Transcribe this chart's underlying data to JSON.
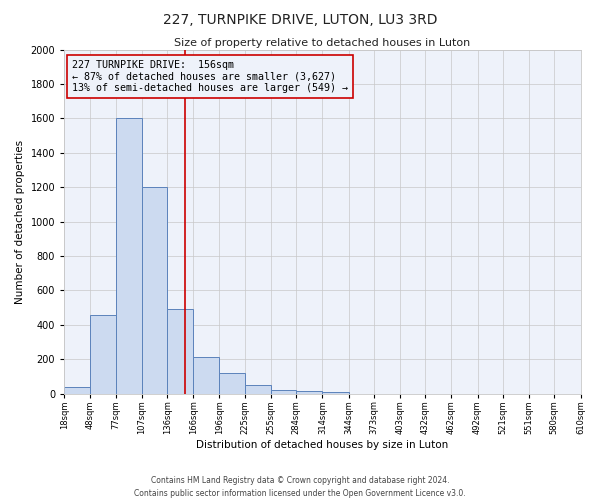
{
  "title": "227, TURNPIKE DRIVE, LUTON, LU3 3RD",
  "subtitle": "Size of property relative to detached houses in Luton",
  "xlabel": "Distribution of detached houses by size in Luton",
  "ylabel": "Number of detached properties",
  "bin_edges": [
    18,
    48,
    77,
    107,
    136,
    166,
    196,
    225,
    255,
    284,
    314,
    344,
    373,
    403,
    432,
    462,
    492,
    521,
    551,
    580,
    610
  ],
  "bin_counts": [
    35,
    455,
    1600,
    1200,
    490,
    215,
    120,
    50,
    20,
    15,
    10,
    0,
    0,
    0,
    0,
    0,
    0,
    0,
    0,
    0
  ],
  "bar_color": "#ccdaf0",
  "bar_edge_color": "#5b82bb",
  "grid_color": "#c8c8c8",
  "figure_bg": "#ffffff",
  "axes_bg": "#eef2fa",
  "vline_x": 156,
  "vline_color": "#cc0000",
  "annotation_text_line1": "227 TURNPIKE DRIVE:  156sqm",
  "annotation_text_line2": "← 87% of detached houses are smaller (3,627)",
  "annotation_text_line3": "13% of semi-detached houses are larger (549) →",
  "annotation_box_color": "#cc0000",
  "ylim": [
    0,
    2000
  ],
  "yticks": [
    0,
    200,
    400,
    600,
    800,
    1000,
    1200,
    1400,
    1600,
    1800,
    2000
  ],
  "footer_line1": "Contains HM Land Registry data © Crown copyright and database right 2024.",
  "footer_line2": "Contains public sector information licensed under the Open Government Licence v3.0.",
  "tick_labels": [
    "18sqm",
    "48sqm",
    "77sqm",
    "107sqm",
    "136sqm",
    "166sqm",
    "196sqm",
    "225sqm",
    "255sqm",
    "284sqm",
    "314sqm",
    "344sqm",
    "373sqm",
    "403sqm",
    "432sqm",
    "462sqm",
    "492sqm",
    "521sqm",
    "551sqm",
    "580sqm",
    "610sqm"
  ]
}
